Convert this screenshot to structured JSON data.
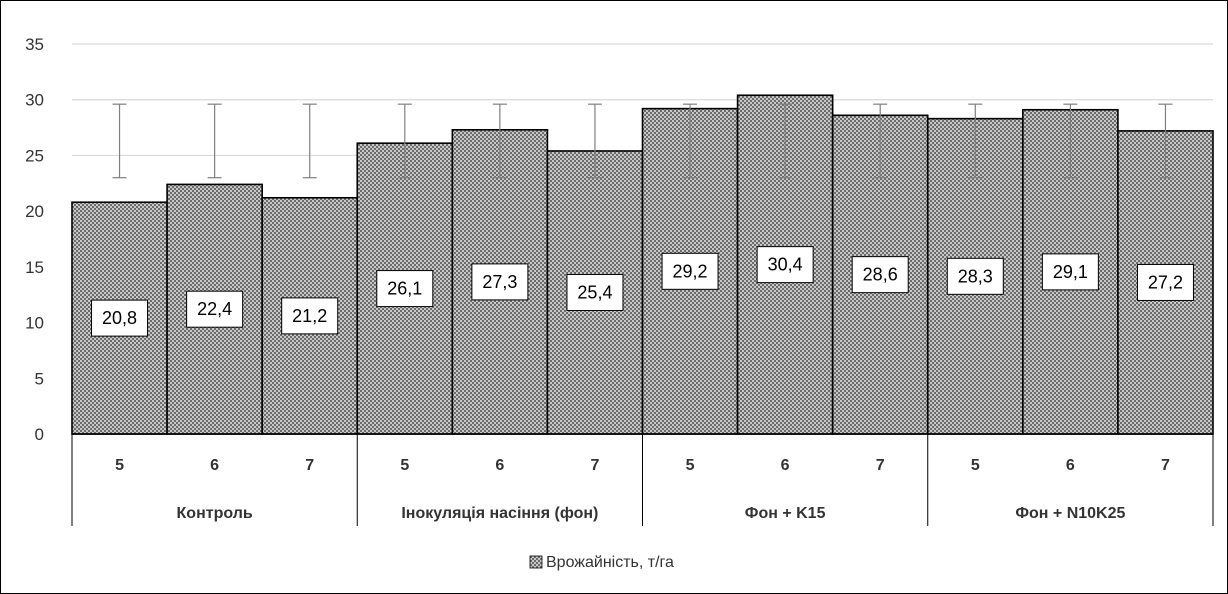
{
  "chart_data": {
    "type": "bar",
    "ylim": [
      0,
      35
    ],
    "yticks": [
      0,
      5,
      10,
      15,
      20,
      25,
      30,
      35
    ],
    "grid": true,
    "legend_position": "bottom",
    "categories": [
      "5",
      "6",
      "7",
      "5",
      "6",
      "7",
      "5",
      "6",
      "7",
      "5",
      "6",
      "7"
    ],
    "groups": [
      {
        "label": "Контроль",
        "size": 3
      },
      {
        "label": "Інокуляція насіння (фон)",
        "size": 3
      },
      {
        "label": "Фон + K15",
        "size": 3
      },
      {
        "label": "Фон + N10K25",
        "size": 3
      }
    ],
    "series": [
      {
        "name": "Врожайність, т/га",
        "values": [
          20.8,
          22.4,
          21.2,
          26.1,
          27.3,
          25.4,
          29.2,
          30.4,
          28.6,
          28.3,
          29.1,
          27.2
        ],
        "data_labels": [
          "20,8",
          "22,4",
          "21,2",
          "26,1",
          "27,3",
          "25,4",
          "29,2",
          "30,4",
          "28,6",
          "28,3",
          "29,1",
          "27,2"
        ],
        "error_low": [
          23.0,
          23.0,
          23.0,
          23.0,
          23.0,
          23.0,
          23.0,
          23.0,
          23.0,
          23.0,
          23.0,
          23.0
        ],
        "error_high": [
          29.6,
          29.6,
          29.6,
          29.6,
          29.6,
          29.6,
          29.6,
          29.6,
          29.6,
          29.6,
          29.6,
          29.6
        ]
      }
    ]
  }
}
